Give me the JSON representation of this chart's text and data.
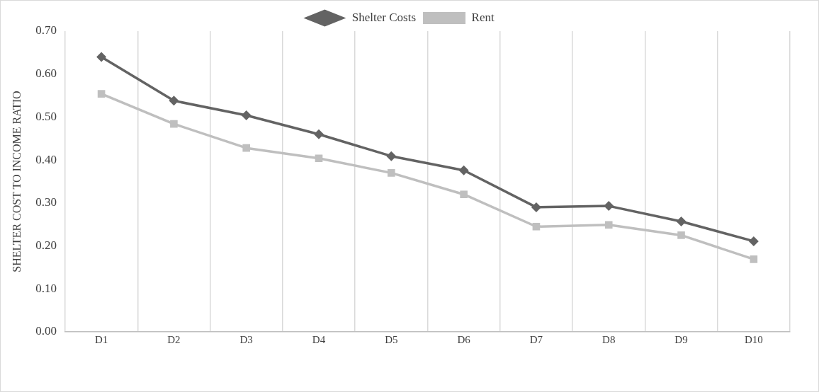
{
  "chart_data": {
    "type": "line",
    "ylabel": "SHELTER COST TO INCOME RATIO",
    "categories": [
      "D1",
      "D2",
      "D3",
      "D4",
      "D5",
      "D6",
      "D7",
      "D8",
      "D9",
      "D10"
    ],
    "series": [
      {
        "name": "Shelter Costs",
        "color": "#636363",
        "marker": "diamond",
        "values": [
          0.64,
          0.538,
          0.504,
          0.46,
          0.409,
          0.376,
          0.29,
          0.293,
          0.257,
          0.211
        ]
      },
      {
        "name": "Rent",
        "color": "#bfbfbf",
        "marker": "square",
        "values": [
          0.554,
          0.484,
          0.428,
          0.404,
          0.37,
          0.32,
          0.245,
          0.249,
          0.225,
          0.169
        ]
      }
    ],
    "ylim": [
      0,
      0.7
    ],
    "yticks": [
      {
        "value": 0,
        "label": "0.00"
      },
      {
        "value": 0.1,
        "label": "0.10"
      },
      {
        "value": 0.2,
        "label": "0.20"
      },
      {
        "value": 0.3,
        "label": "0.30"
      },
      {
        "value": 0.4,
        "label": "0.40"
      },
      {
        "value": 0.5,
        "label": "0.50"
      },
      {
        "value": 0.6,
        "label": "0.60"
      },
      {
        "value": 0.7,
        "label": "0.70"
      }
    ],
    "grid": "x",
    "legend": "top",
    "line_style": "solid"
  }
}
